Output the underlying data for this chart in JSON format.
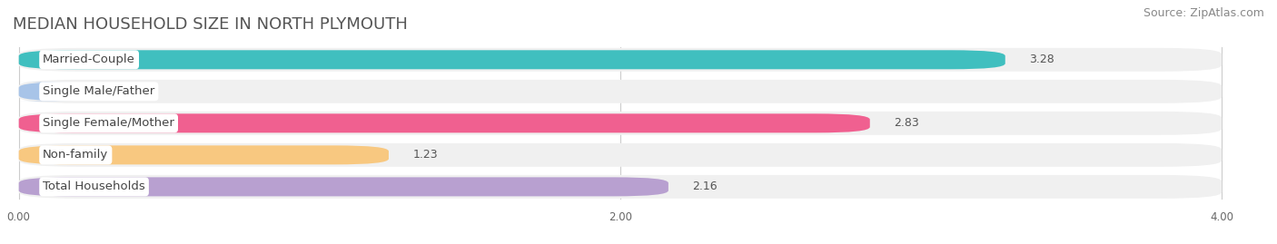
{
  "title": "MEDIAN HOUSEHOLD SIZE IN NORTH PLYMOUTH",
  "source": "Source: ZipAtlas.com",
  "categories": [
    "Married-Couple",
    "Single Male/Father",
    "Single Female/Mother",
    "Non-family",
    "Total Households"
  ],
  "values": [
    3.28,
    0.0,
    2.83,
    1.23,
    2.16
  ],
  "bar_colors": [
    "#40bfbf",
    "#a8c4e8",
    "#f06090",
    "#f8c880",
    "#b8a0d0"
  ],
  "xlim": [
    0,
    4.0
  ],
  "xticks": [
    0.0,
    2.0,
    4.0
  ],
  "xtick_labels": [
    "0.00",
    "2.00",
    "4.00"
  ],
  "title_fontsize": 13,
  "source_fontsize": 9,
  "value_fontsize": 9,
  "label_fontsize": 9.5,
  "background_color": "#ffffff",
  "row_bg_color": "#f0f0f0",
  "small_bar_val": 0.18
}
